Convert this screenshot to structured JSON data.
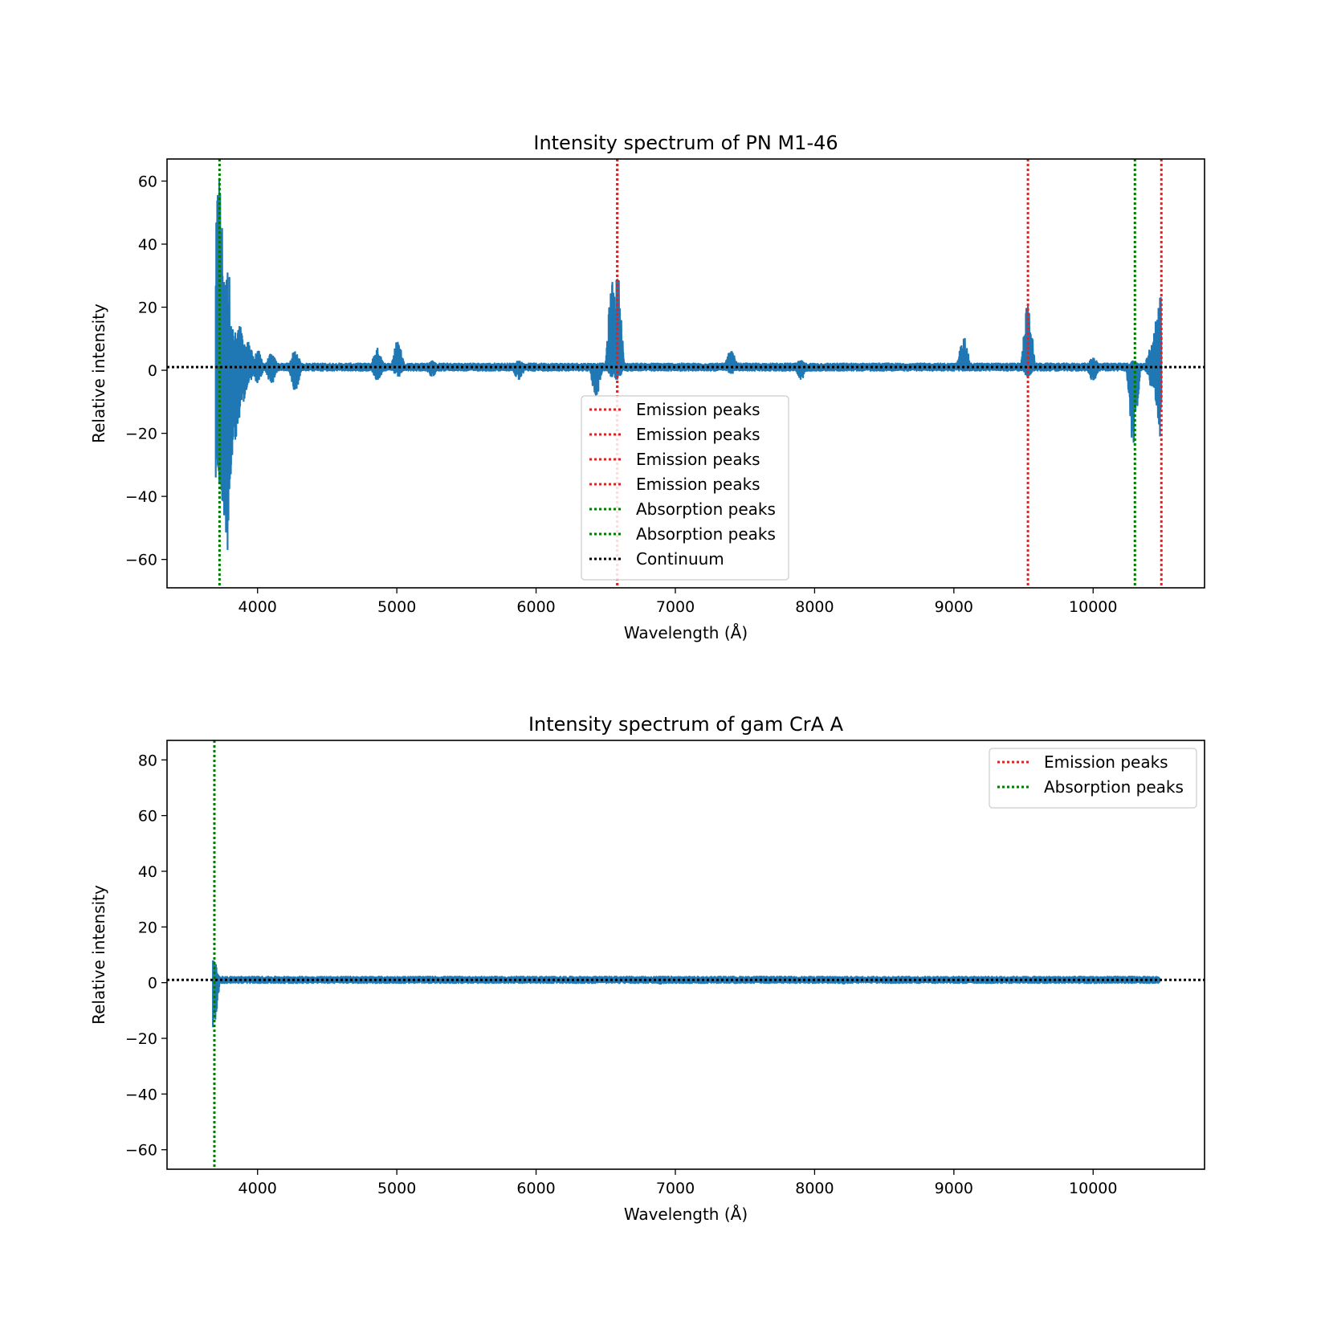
{
  "chart_data": [
    {
      "type": "line",
      "title": "Intensity spectrum of PN M1-46",
      "xlabel": "Wavelength (Å)",
      "ylabel": "Relative intensity",
      "xlim": [
        3350,
        10800
      ],
      "ylim": [
        -69,
        67
      ],
      "xticks": [
        4000,
        5000,
        6000,
        7000,
        8000,
        9000,
        10000
      ],
      "yticks": [
        -60,
        -40,
        -20,
        0,
        20,
        40,
        60
      ],
      "xtick_labels": [
        "4000",
        "5000",
        "6000",
        "7000",
        "8000",
        "9000",
        "10000"
      ],
      "ytick_labels": [
        "−60",
        "−40",
        "−20",
        "0",
        "20",
        "40",
        "60"
      ],
      "grid": false,
      "legend_position": "lower-center",
      "series": [
        {
          "name": "",
          "color": "#1f77b4",
          "x_range": [
            3700,
            10490
          ],
          "baseline": 1,
          "features": [
            {
              "x": 3700,
              "min": -34,
              "max": 24
            },
            {
              "x": 3715,
              "min": -30,
              "max": 46
            },
            {
              "x": 3725,
              "min": -36,
              "max": 61
            },
            {
              "x": 3740,
              "min": -38,
              "max": 24
            },
            {
              "x": 3760,
              "min": -46,
              "max": 28
            },
            {
              "x": 3785,
              "min": -57,
              "max": 31
            },
            {
              "x": 3810,
              "min": -30,
              "max": 14
            },
            {
              "x": 3840,
              "min": -22,
              "max": 12
            },
            {
              "x": 3870,
              "min": -15,
              "max": 14
            },
            {
              "x": 3900,
              "min": -10,
              "max": 8
            },
            {
              "x": 3935,
              "min": -4,
              "max": 9
            },
            {
              "x": 4000,
              "min": -4,
              "max": 6
            },
            {
              "x": 4100,
              "min": -4,
              "max": 5
            },
            {
              "x": 4270,
              "min": -6,
              "max": 6
            },
            {
              "x": 4861,
              "min": -3,
              "max": 7
            },
            {
              "x": 5007,
              "min": -2,
              "max": 9
            },
            {
              "x": 5250,
              "min": -2,
              "max": 3
            },
            {
              "x": 5875,
              "min": -3,
              "max": 3
            },
            {
              "x": 6430,
              "min": -8,
              "max": 2
            },
            {
              "x": 6548,
              "min": -2,
              "max": 28
            },
            {
              "x": 6583,
              "min": -3,
              "max": 29
            },
            {
              "x": 7400,
              "min": -1,
              "max": 6
            },
            {
              "x": 7900,
              "min": -3,
              "max": 3
            },
            {
              "x": 9070,
              "min": 0,
              "max": 10
            },
            {
              "x": 9532,
              "min": -2,
              "max": 21
            },
            {
              "x": 10000,
              "min": -3,
              "max": 4
            },
            {
              "x": 10290,
              "min": -23,
              "max": 3
            },
            {
              "x": 10420,
              "min": -5,
              "max": 8
            },
            {
              "x": 10460,
              "min": -10,
              "max": 16
            },
            {
              "x": 10480,
              "min": -21,
              "max": 23
            }
          ]
        }
      ],
      "vlines": [
        {
          "x": 6583,
          "color": "#d62728",
          "label": "Emission peaks"
        },
        {
          "x": 6583,
          "color": "#d62728",
          "label": "Emission peaks"
        },
        {
          "x": 9532,
          "color": "#d62728",
          "label": "Emission peaks"
        },
        {
          "x": 10490,
          "color": "#d62728",
          "label": "Emission peaks"
        },
        {
          "x": 3727,
          "color": "#007a00",
          "label": "Absorption peaks"
        },
        {
          "x": 10300,
          "color": "#007a00",
          "label": "Absorption peaks"
        }
      ],
      "hline": {
        "y": 1,
        "color": "#000000",
        "label": "Continuum"
      },
      "legend": [
        {
          "label": "Emission peaks",
          "color": "#d62728"
        },
        {
          "label": "Emission peaks",
          "color": "#d62728"
        },
        {
          "label": "Emission peaks",
          "color": "#d62728"
        },
        {
          "label": "Emission peaks",
          "color": "#d62728"
        },
        {
          "label": "Absorption peaks",
          "color": "#007a00"
        },
        {
          "label": "Absorption peaks",
          "color": "#007a00"
        },
        {
          "label": "Continuum",
          "color": "#000000"
        }
      ]
    },
    {
      "type": "line",
      "title": "Intensity spectrum of gam CrA A",
      "xlabel": "Wavelength (Å)",
      "ylabel": "Relative intensity",
      "xlim": [
        3350,
        10800
      ],
      "ylim": [
        -67,
        87
      ],
      "xticks": [
        4000,
        5000,
        6000,
        7000,
        8000,
        9000,
        10000
      ],
      "yticks": [
        -60,
        -40,
        -20,
        0,
        20,
        40,
        60,
        80
      ],
      "xtick_labels": [
        "4000",
        "5000",
        "6000",
        "7000",
        "8000",
        "9000",
        "10000"
      ],
      "ytick_labels": [
        "−60",
        "−40",
        "−20",
        "0",
        "20",
        "40",
        "60",
        "80"
      ],
      "grid": false,
      "legend_position": "top-right",
      "series": [
        {
          "name": "",
          "color": "#1f77b4",
          "x_range": [
            3680,
            10480
          ],
          "baseline": 1,
          "features": [
            {
              "x": 3680,
              "min": -16,
              "max": 8
            },
            {
              "x": 3700,
              "min": -2,
              "max": 3
            },
            {
              "x": 3800,
              "min": 0,
              "max": 2
            },
            {
              "x": 6900,
              "min": -0.5,
              "max": 1.5
            },
            {
              "x": 8200,
              "min": -0.5,
              "max": 1.5
            },
            {
              "x": 10450,
              "min": 0.5,
              "max": 2
            }
          ]
        }
      ],
      "vlines": [
        {
          "x": 3690,
          "color": "#007a00",
          "label": "Absorption peaks"
        }
      ],
      "hline": {
        "y": 1,
        "color": "#000000",
        "label": ""
      },
      "legend": [
        {
          "label": "Emission peaks",
          "color": "#d62728"
        },
        {
          "label": "Absorption peaks",
          "color": "#007a00"
        }
      ]
    }
  ]
}
